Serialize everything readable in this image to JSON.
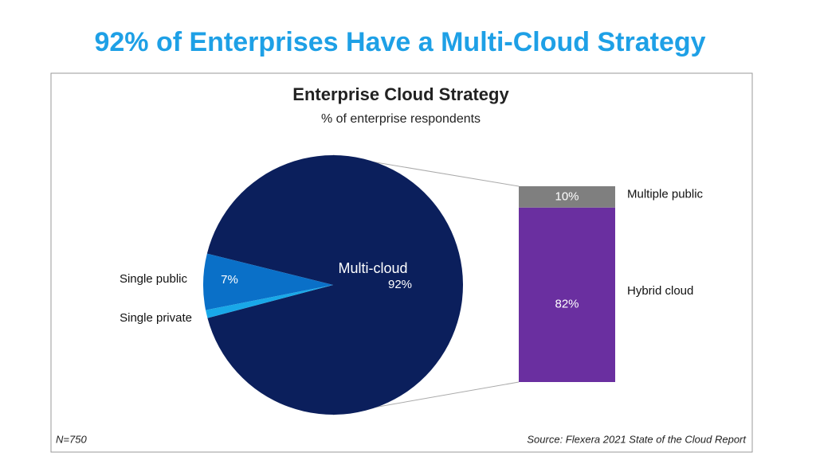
{
  "title": "92% of Enterprises Have a Multi-Cloud Strategy",
  "chart_data": {
    "type": "pie",
    "title": "Enterprise Cloud Strategy",
    "subtitle": "% of enterprise respondents",
    "categories": [
      "Multi-cloud",
      "Single public",
      "Single private"
    ],
    "values": [
      92,
      7,
      1
    ],
    "value_labels": [
      "92%",
      "7%",
      null
    ],
    "colors": [
      "#0b1f5c",
      "#0a70c8",
      "#19a8e8"
    ],
    "breakdown": {
      "type": "bar",
      "categories": [
        "Hybrid cloud",
        "Multiple public"
      ],
      "values": [
        82,
        10
      ],
      "value_labels": [
        "82%",
        "10%"
      ],
      "colors": [
        "#6a2fa0",
        "#7f7f7f"
      ]
    },
    "footnote": "N=750",
    "source": "Source: Flexera 2021 State of the Cloud Report"
  }
}
